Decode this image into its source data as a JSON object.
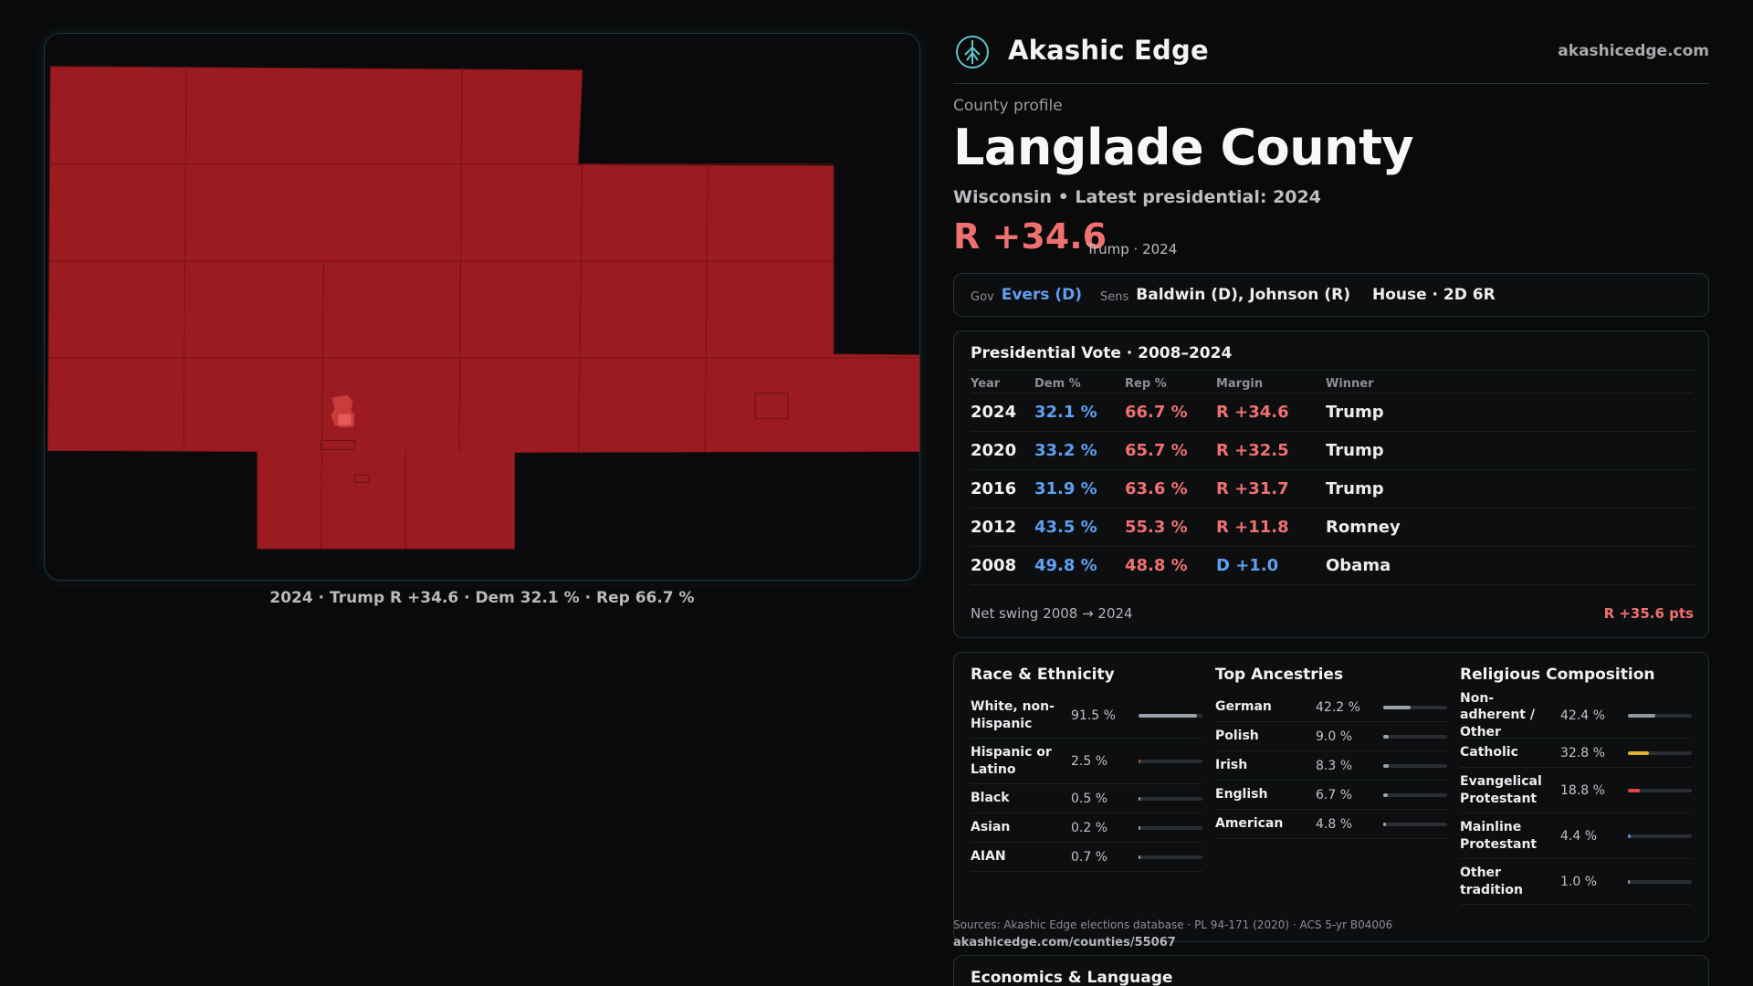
{
  "map": {
    "caption": "2024 · Trump R +34.6 · Dem 32.1 % · Rep 66.7 %",
    "fill_color": "#9b1b20",
    "border_color": "#1c3a40"
  },
  "brand": {
    "name": "Akashic Edge",
    "url": "akashicedge.com",
    "logo_icon": "tree-emblem-icon"
  },
  "profile": {
    "kicker": "County profile",
    "title": "Langlade County",
    "subtitle": "Wisconsin • Latest presidential: 2024",
    "margin": "R +34.6",
    "margin_note": "Trump · 2024"
  },
  "officials": {
    "gov_label": "Gov",
    "gov_value": "Evers (D)",
    "sens_label": "Sens",
    "sens_value": "Baldwin (D), Johnson (R)",
    "house": "House · 2D 6R"
  },
  "presidential": {
    "title": "Presidential Vote · 2008–2024",
    "headers": {
      "year": "Year",
      "dem": "Dem %",
      "rep": "Rep %",
      "margin": "Margin",
      "winner": "Winner"
    },
    "rows": [
      {
        "year": "2024",
        "dem": "32.1 %",
        "rep": "66.7 %",
        "margin": "R +34.6",
        "party": "R",
        "winner": "Trump"
      },
      {
        "year": "2020",
        "dem": "33.2 %",
        "rep": "65.7 %",
        "margin": "R +32.5",
        "party": "R",
        "winner": "Trump"
      },
      {
        "year": "2016",
        "dem": "31.9 %",
        "rep": "63.6 %",
        "margin": "R +31.7",
        "party": "R",
        "winner": "Trump"
      },
      {
        "year": "2012",
        "dem": "43.5 %",
        "rep": "55.3 %",
        "margin": "R +11.8",
        "party": "R",
        "winner": "Romney"
      },
      {
        "year": "2008",
        "dem": "49.8 %",
        "rep": "48.8 %",
        "margin": "D +1.0",
        "party": "D",
        "winner": "Obama"
      }
    ],
    "swing_label": "Net swing 2008 → 2024",
    "swing_value": "R +35.6 pts"
  },
  "race": {
    "title": "Race & Ethnicity",
    "items": [
      {
        "label": "White, non-Hispanic",
        "value": "91.5 %",
        "pct": 91.5,
        "color": "#9aa3ad"
      },
      {
        "label": "Hispanic or Latino",
        "value": "2.5 %",
        "pct": 2.5,
        "color": "#c0503a"
      },
      {
        "label": "Black",
        "value": "0.5 %",
        "pct": 0.5,
        "color": "#9aa3ad"
      },
      {
        "label": "Asian",
        "value": "0.2 %",
        "pct": 0.2,
        "color": "#9aa3ad"
      },
      {
        "label": "AIAN",
        "value": "0.7 %",
        "pct": 0.7,
        "color": "#9aa3ad"
      }
    ]
  },
  "ancestry": {
    "title": "Top Ancestries",
    "items": [
      {
        "label": "German",
        "value": "42.2 %",
        "pct": 42.2,
        "color": "#9aa3ad"
      },
      {
        "label": "Polish",
        "value": "9.0 %",
        "pct": 9.0,
        "color": "#9aa3ad"
      },
      {
        "label": "Irish",
        "value": "8.3 %",
        "pct": 8.3,
        "color": "#9aa3ad"
      },
      {
        "label": "English",
        "value": "6.7 %",
        "pct": 6.7,
        "color": "#9aa3ad"
      },
      {
        "label": "American",
        "value": "4.8 %",
        "pct": 4.8,
        "color": "#9aa3ad"
      }
    ]
  },
  "religion": {
    "title": "Religious Composition",
    "items": [
      {
        "label": "Non-adherent / Other",
        "value": "42.4 %",
        "pct": 42.4,
        "color": "#8f98a3"
      },
      {
        "label": "Catholic",
        "value": "32.8 %",
        "pct": 32.8,
        "color": "#e0b030"
      },
      {
        "label": "Evangelical Protestant",
        "value": "18.8 %",
        "pct": 18.8,
        "color": "#e04848"
      },
      {
        "label": "Mainline Protestant",
        "value": "4.4 %",
        "pct": 4.4,
        "color": "#4a90e0"
      },
      {
        "label": "Other tradition",
        "value": "1.0 %",
        "pct": 1.0,
        "color": "#9aa3ad"
      }
    ]
  },
  "sources": {
    "text": "Sources: Akashic Edge elections database · PL 94-171 (2020) · ACS 5-yr B04006",
    "link": "akashicedge.com/counties/55067"
  },
  "economics": {
    "title": "Economics & Language"
  },
  "colors": {
    "dem": "#5fa0f0",
    "rep": "#f07070"
  }
}
